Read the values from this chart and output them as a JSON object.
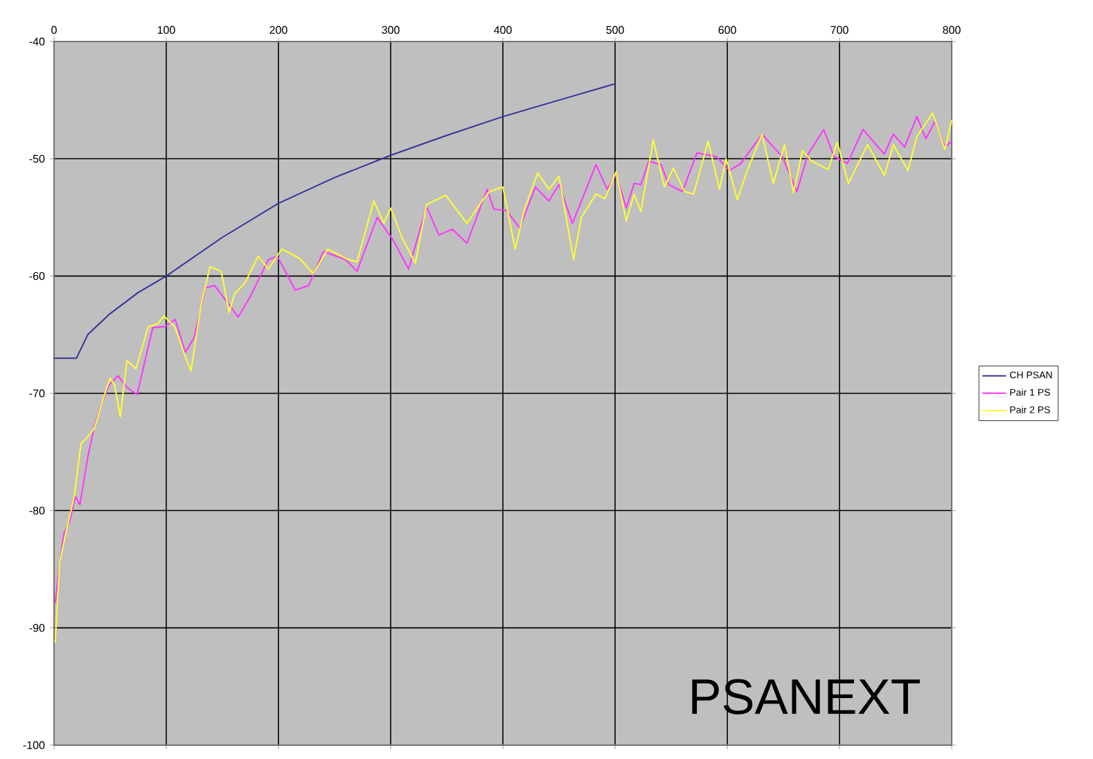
{
  "chart_data": {
    "type": "line",
    "xlim": [
      0,
      800
    ],
    "ylim": [
      -100,
      -40
    ],
    "xticks": [
      0,
      100,
      200,
      300,
      400,
      500,
      600,
      700,
      800
    ],
    "yticks": [
      -100,
      -90,
      -80,
      -70,
      -60,
      -50,
      -40
    ],
    "grid": true,
    "legend": "right",
    "marker": "none",
    "line_style": "solid",
    "annotations": [
      "PSANEXT"
    ],
    "series": [
      {
        "name": "CH PSAN",
        "color": "#333399",
        "x": [
          0,
          20,
          30,
          50,
          75,
          100,
          150,
          200,
          250,
          300,
          350,
          400,
          450,
          500
        ],
        "values": [
          -67,
          -67,
          -65,
          -63.2,
          -61.4,
          -60,
          -56.7,
          -53.8,
          -51.6,
          -49.7,
          -48,
          -46.4,
          -45,
          -43.6
        ]
      },
      {
        "name": "Pair 1 PS",
        "color": "#ff33ff",
        "x": [
          1,
          5,
          9,
          14,
          19,
          23,
          30,
          36,
          42,
          49,
          57,
          65,
          74,
          88,
          99,
          108,
          117,
          125,
          135,
          143,
          158,
          164,
          174,
          191,
          199,
          215,
          227,
          240,
          260,
          270,
          288,
          302,
          316,
          332,
          343,
          355,
          368,
          386,
          392,
          403,
          415,
          429,
          441,
          450,
          462,
          483,
          493,
          501,
          510,
          517,
          523,
          530,
          541,
          548,
          560,
          573,
          590,
          602,
          612,
          631,
          641,
          649,
          662,
          672,
          686,
          695,
          707,
          721,
          740,
          748,
          758,
          769,
          777,
          785,
          794,
          800
        ],
        "values": [
          -87.9,
          -84.4,
          -81.9,
          -80.9,
          -78.8,
          -79.5,
          -75.5,
          -72.8,
          -71,
          -69.3,
          -68.5,
          -69.5,
          -70.1,
          -64.4,
          -64.3,
          -63.7,
          -66.5,
          -65.2,
          -61,
          -60.8,
          -62.7,
          -63.5,
          -61.9,
          -58.6,
          -58.3,
          -61.2,
          -60.8,
          -57.9,
          -58.6,
          -59.6,
          -55,
          -56.9,
          -59.4,
          -54.1,
          -56.5,
          -56,
          -57.2,
          -52.6,
          -54.3,
          -54.4,
          -55.9,
          -52.4,
          -53.6,
          -52.2,
          -55.5,
          -50.5,
          -52.6,
          -51.3,
          -54.2,
          -52.1,
          -52.2,
          -50.2,
          -50.5,
          -52.2,
          -52.8,
          -49.5,
          -49.8,
          -51,
          -50.4,
          -47.9,
          -49,
          -49.8,
          -52.8,
          -49.6,
          -47.5,
          -49.8,
          -50.4,
          -47.5,
          -49.6,
          -47.9,
          -49,
          -46.4,
          -48.3,
          -46.8,
          -49,
          -48.5
        ]
      },
      {
        "name": "Pair 2 PS",
        "color": "#ffff33",
        "x": [
          1,
          5,
          11,
          18,
          24,
          30,
          36,
          44,
          50,
          54,
          59,
          65,
          73,
          84,
          92,
          98,
          108,
          116,
          122,
          131,
          139,
          149,
          156,
          161,
          170,
          182,
          191,
          203,
          219,
          231,
          244,
          260,
          270,
          285,
          294,
          300,
          310,
          322,
          332,
          349,
          368,
          380,
          388,
          400,
          411,
          419,
          431,
          441,
          450,
          463,
          470,
          483,
          491,
          501,
          510,
          517,
          523,
          534,
          544,
          552,
          562,
          570,
          583,
          593,
          599,
          609,
          617,
          631,
          641,
          651,
          659,
          667,
          675,
          690,
          698,
          708,
          725,
          740,
          748,
          761,
          769,
          783,
          794,
          800
        ],
        "values": [
          -91.3,
          -84.4,
          -81.7,
          -78.8,
          -74.3,
          -73.7,
          -73,
          -70.4,
          -68.7,
          -69.3,
          -72,
          -67.2,
          -67.9,
          -64.3,
          -64.1,
          -63.4,
          -64.4,
          -66.6,
          -68.1,
          -62.5,
          -59.2,
          -59.6,
          -63.1,
          -61.5,
          -60.6,
          -58.3,
          -59.4,
          -57.7,
          -58.5,
          -59.8,
          -57.7,
          -58.5,
          -58.8,
          -53.6,
          -55.5,
          -54.2,
          -56.7,
          -58.9,
          -53.9,
          -53.1,
          -55.5,
          -53.8,
          -52.8,
          -52.4,
          -57.7,
          -54.4,
          -51.2,
          -52.6,
          -51.5,
          -58.6,
          -55,
          -53,
          -53.4,
          -51.1,
          -55.3,
          -53,
          -54.5,
          -48.4,
          -52.4,
          -50.8,
          -52.8,
          -53,
          -48.5,
          -52.6,
          -50,
          -53.5,
          -51.2,
          -47.9,
          -52.1,
          -48.8,
          -52.9,
          -49.3,
          -50.2,
          -50.9,
          -48.6,
          -52.1,
          -48.8,
          -51.4,
          -48.8,
          -51,
          -48.1,
          -46.1,
          -49.2,
          -46.7
        ]
      }
    ]
  }
}
